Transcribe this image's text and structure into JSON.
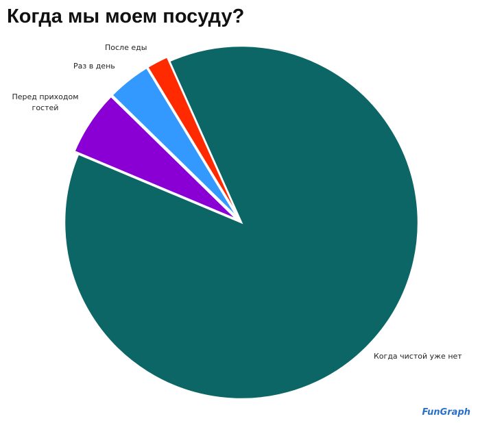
{
  "chart_data": {
    "type": "pie",
    "title": "Когда мы моем посуду?",
    "categories": [
      "Когда чистой уже нет",
      "Перед приходом гостей",
      "Раз в день",
      "После еды"
    ],
    "values": [
      88,
      6,
      4,
      2
    ],
    "colors": [
      "#0d6666",
      "#8a00d4",
      "#3399ff",
      "#ff2a00"
    ],
    "watermark": "FunGraph"
  }
}
